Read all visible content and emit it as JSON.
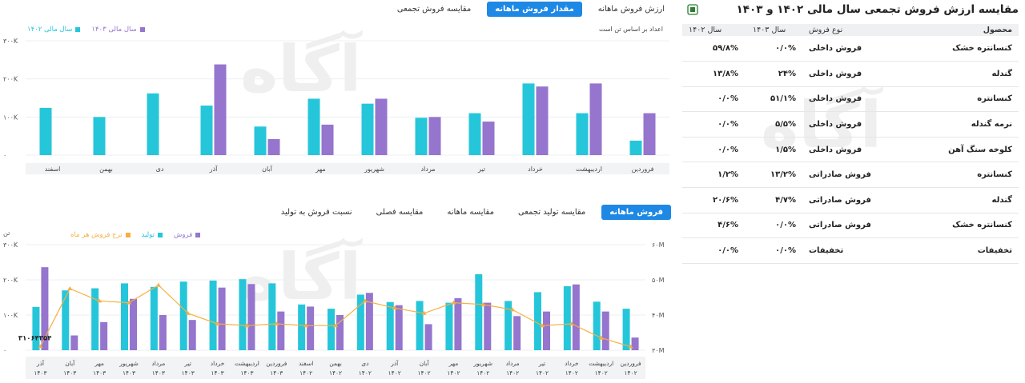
{
  "right_panel": {
    "title": "مقایسه ارزش فروش تجمعی سال مالی ۱۴۰۲ و ۱۴۰۳",
    "export_icon": "excel-export-icon",
    "columns": {
      "product": "محصول",
      "type": "نوع فروش",
      "y1403": "سال ۱۴۰۳",
      "y1402": "سال ۱۴۰۲"
    },
    "rows": [
      {
        "product": "کنسانتره خشک",
        "type": "فروش داخلی",
        "y1403": "۰/۰%",
        "y1402": "۵۹/۸%"
      },
      {
        "product": "گندله",
        "type": "فروش داخلی",
        "y1403": "۲۴%",
        "y1402": "۱۳/۸%"
      },
      {
        "product": "کنسانتره",
        "type": "فروش داخلی",
        "y1403": "۵۱/۱%",
        "y1402": "۰/۰%"
      },
      {
        "product": "نرمه گندله",
        "type": "فروش داخلی",
        "y1403": "۵/۵%",
        "y1402": "۰/۰%"
      },
      {
        "product": "کلوخه سنگ آهن",
        "type": "فروش داخلی",
        "y1403": "۱/۵%",
        "y1402": "۰/۰%"
      },
      {
        "product": "کنسانتره",
        "type": "فروش صادراتی",
        "y1403": "۱۳/۲%",
        "y1402": "۱/۲%"
      },
      {
        "product": "گندله",
        "type": "فروش صادراتی",
        "y1403": "۴/۷%",
        "y1402": "۲۰/۶%"
      },
      {
        "product": "کنسانتره خشک",
        "type": "فروش صادراتی",
        "y1403": "۰/۰%",
        "y1402": "۴/۶%"
      },
      {
        "product": "تخفیفات",
        "type": "تخفیفات",
        "y1403": "۰/۰%",
        "y1402": "۰/۰%"
      }
    ]
  },
  "top_tabs": [
    "ارزش فروش ماهانه",
    "مقدار فروش ماهانه",
    "مقایسه فروش تجمعی"
  ],
  "top_tabs_active": 1,
  "bottom_tabs": [
    "فروش ماهانه",
    "مقایسه تولید تجمعی",
    "مقایسه ماهانه",
    "مقایسه فصلی",
    "نسبت فروش به تولید"
  ],
  "bottom_tabs_active": 0,
  "top_note": "اعداد بر اساس تن است",
  "colors": {
    "cyan": "#26c6da",
    "purple": "#9575cd",
    "orange": "#f5b041",
    "active_tab": "#1e88e5"
  },
  "chart_data": [
    {
      "type": "bar",
      "legend": [
        {
          "name": "سال مالی ۱۴۰۳",
          "color": "#9575cd"
        },
        {
          "name": "سال مالی ۱۴۰۲",
          "color": "#26c6da"
        }
      ],
      "y_ticks": [
        "۰",
        "۱۰۰K",
        "۲۰۰K",
        "۳۰۰K"
      ],
      "ylim": [
        0,
        300000
      ],
      "categories": [
        "فروردین",
        "اردیبهشت",
        "خرداد",
        "تیر",
        "مرداد",
        "شهریور",
        "مهر",
        "آبان",
        "آذر",
        "دی",
        "بهمن",
        "اسفند"
      ],
      "series": [
        {
          "name": "سال مالی ۱۴۰۲",
          "color": "#26c6da",
          "values": [
            38000,
            110000,
            188000,
            110000,
            98000,
            135000,
            148000,
            75000,
            130000,
            162000,
            100000,
            124000
          ]
        },
        {
          "name": "سال مالی ۱۴۰۳",
          "color": "#9575cd",
          "values": [
            110000,
            188000,
            180000,
            88000,
            100000,
            148000,
            80000,
            42000,
            238000,
            0,
            0,
            0
          ]
        }
      ]
    },
    {
      "type": "bar",
      "legend": [
        {
          "name": "فروش",
          "color": "#9575cd"
        },
        {
          "name": "تولید",
          "color": "#26c6da"
        },
        {
          "name": "نرخ فروش هر ماه",
          "color": "#f5b041"
        }
      ],
      "left_unit": "تن",
      "y_ticks_left": [
        "۰",
        "۱۰۰K",
        "۲۰۰K",
        "۳۰۰K"
      ],
      "ylim_left": [
        0,
        300000
      ],
      "y_ticks_right": [
        "۳۰M",
        "۴۰M",
        "۵۰M",
        "۶۰M"
      ],
      "ylim_right": [
        30000000,
        60000000
      ],
      "annotation": "۳۱۰۶۴۳۵۴",
      "categories": [
        [
          "فروردین",
          "۱۴۰۲"
        ],
        [
          "اردیبهشت",
          "۱۴۰۲"
        ],
        [
          "خرداد",
          "۱۴۰۲"
        ],
        [
          "تیر",
          "۱۴۰۲"
        ],
        [
          "مرداد",
          "۱۴۰۲"
        ],
        [
          "شهریور",
          "۱۴۰۲"
        ],
        [
          "مهر",
          "۱۴۰۲"
        ],
        [
          "آبان",
          "۱۴۰۲"
        ],
        [
          "آذر",
          "۱۴۰۲"
        ],
        [
          "دی",
          "۱۴۰۲"
        ],
        [
          "بهمن",
          "۱۴۰۲"
        ],
        [
          "اسفند",
          "۱۴۰۲"
        ],
        [
          "فروردین",
          "۱۴۰۳"
        ],
        [
          "اردیبهشت",
          "۱۴۰۳"
        ],
        [
          "خرداد",
          "۱۴۰۳"
        ],
        [
          "تیر",
          "۱۴۰۳"
        ],
        [
          "مرداد",
          "۱۴۰۳"
        ],
        [
          "شهریور",
          "۱۴۰۳"
        ],
        [
          "مهر",
          "۱۴۰۳"
        ],
        [
          "آبان",
          "۱۴۰۳"
        ],
        [
          "آذر",
          "۱۴۰۳"
        ]
      ],
      "series": [
        {
          "name": "تولید",
          "color": "#26c6da",
          "values": [
            118000,
            138000,
            182000,
            165000,
            140000,
            216000,
            135000,
            140000,
            137000,
            158000,
            118000,
            130000,
            190000,
            202000,
            198000,
            195000,
            180000,
            190000,
            176000,
            170000,
            123000
          ]
        },
        {
          "name": "فروش",
          "color": "#9575cd",
          "values": [
            36000,
            110000,
            187000,
            110000,
            97000,
            135000,
            148000,
            74000,
            128000,
            163000,
            100000,
            124000,
            110000,
            188000,
            178000,
            86000,
            100000,
            146000,
            80000,
            42000,
            236000
          ]
        },
        {
          "name": "نرخ فروش هر ماه",
          "color": "#f5b041",
          "axis": "right",
          "values": [
            31000000,
            33500000,
            37500000,
            37000000,
            41500000,
            43000000,
            43500000,
            40500000,
            42000000,
            44000000,
            37000000,
            37000000,
            37500000,
            37000000,
            37500000,
            40500000,
            48500000,
            43500000,
            44000000,
            47500000,
            31064354
          ]
        }
      ]
    }
  ]
}
